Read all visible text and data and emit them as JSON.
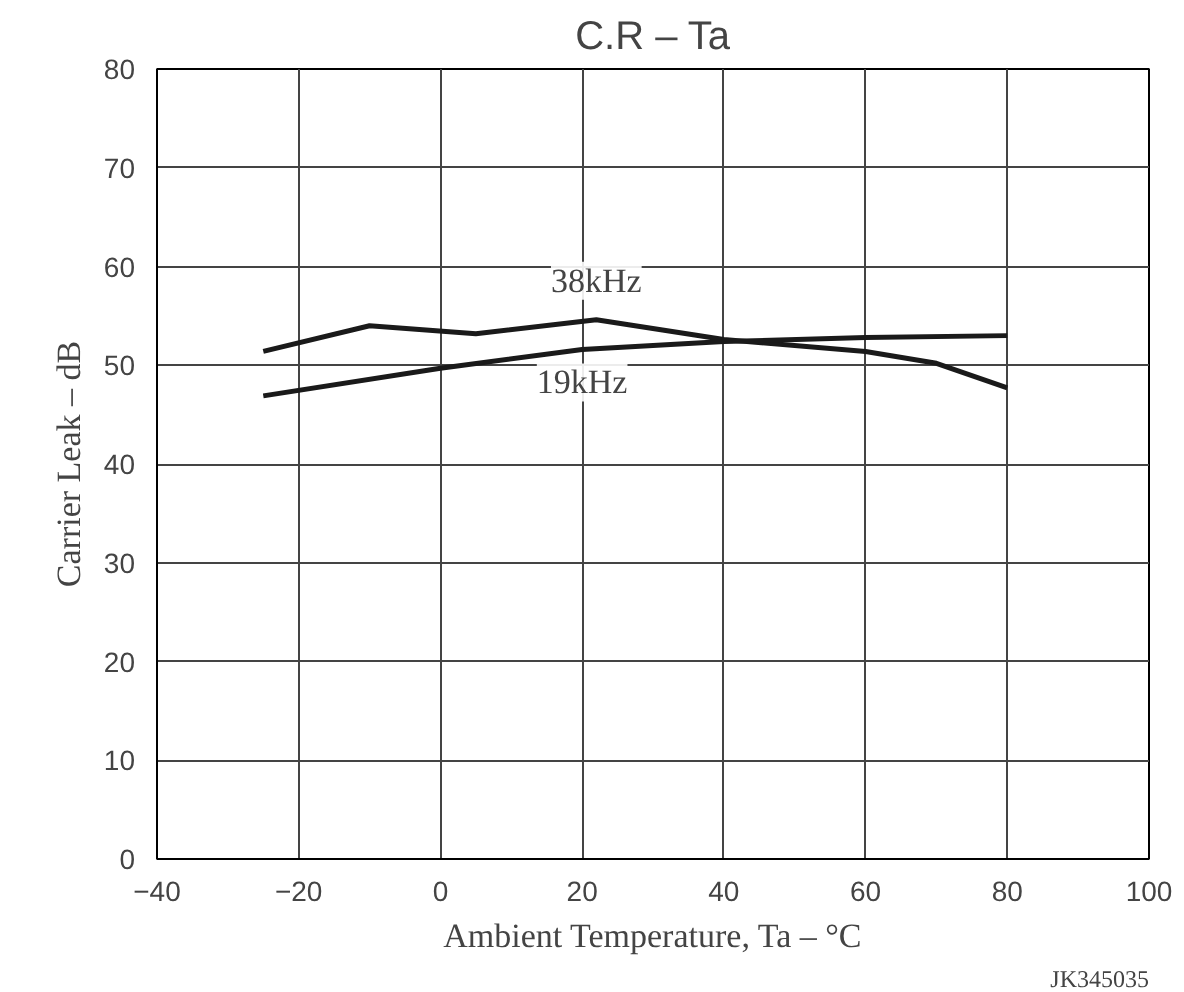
{
  "chart_data": {
    "type": "line",
    "title": "C.R – Ta",
    "xlabel": "Ambient Temperature, Ta – °C",
    "ylabel": "Carrier Leak – dB",
    "series": [
      {
        "name": "38kHz",
        "color": "#1a1a1a",
        "x": [
          -25,
          -10,
          5,
          22,
          40,
          60,
          70,
          80
        ],
        "values": [
          51.4,
          54.0,
          53.2,
          54.6,
          52.6,
          51.4,
          50.2,
          47.7
        ]
      },
      {
        "name": "19kHz",
        "color": "#1a1a1a",
        "x": [
          -25,
          0,
          20,
          40,
          60,
          80
        ],
        "values": [
          46.9,
          49.7,
          51.6,
          52.4,
          52.8,
          53.0
        ]
      }
    ],
    "xlim": [
      -40,
      100
    ],
    "xticks": [
      -40,
      -20,
      0,
      20,
      40,
      60,
      80,
      100
    ],
    "ylim": [
      0,
      80
    ],
    "yticks": [
      0,
      10,
      20,
      30,
      40,
      50,
      60,
      70,
      80
    ],
    "grid": true,
    "marker": "none",
    "line_style": "solid",
    "annotations": [
      "JK345035"
    ]
  }
}
